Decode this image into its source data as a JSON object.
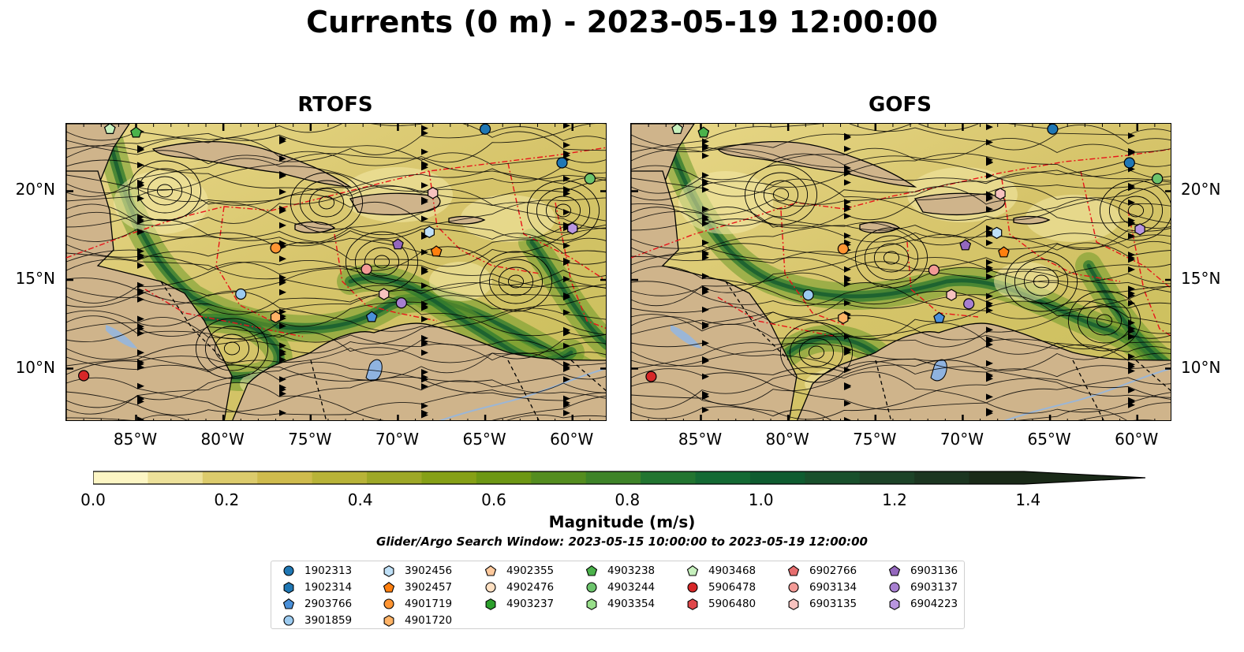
{
  "title": "Currents (0 m) - 2023-05-19 12:00:00",
  "panels": [
    {
      "title": "RTOFS"
    },
    {
      "title": "GOFS"
    }
  ],
  "axes": {
    "lon_ticks": [
      "85°W",
      "80°W",
      "75°W",
      "70°W",
      "65°W",
      "60°W"
    ],
    "lat_ticks": [
      "20°N",
      "15°N",
      "10°N"
    ]
  },
  "colorbar": {
    "label": "Magnitude (m/s)",
    "ticks": [
      "0.0",
      "0.2",
      "0.4",
      "0.6",
      "0.8",
      "1.0",
      "1.2",
      "1.4"
    ],
    "range": [
      0,
      1.5
    ],
    "colors": [
      "#fdf6c4",
      "#ede19a",
      "#dccb6c",
      "#cfbb4d",
      "#b8b338",
      "#9ea827",
      "#86a016",
      "#6d9714",
      "#548d1f",
      "#3e8328",
      "#227530",
      "#146a34",
      "#0f5c30",
      "#19502c",
      "#1d4328",
      "#1c3621",
      "#1a2a18"
    ]
  },
  "search_window": "Glider/Argo Search Window: 2023-05-15 10:00:00 to 2023-05-19 12:00:00",
  "legend": [
    {
      "id": "1902313",
      "shape": "circle",
      "color": "#1f77b4"
    },
    {
      "id": "1902314",
      "shape": "hexagon",
      "color": "#1f77b4"
    },
    {
      "id": "2903766",
      "shape": "pentagon",
      "color": "#4a90d9"
    },
    {
      "id": "3901859",
      "shape": "circle",
      "color": "#9ccbf0"
    },
    {
      "id": "3902456",
      "shape": "hexagon",
      "color": "#bfe0f7"
    },
    {
      "id": "3902457",
      "shape": "pentagon",
      "color": "#ff7f0e"
    },
    {
      "id": "4901719",
      "shape": "circle",
      "color": "#ff9533"
    },
    {
      "id": "4901720",
      "shape": "hexagon",
      "color": "#ffb366"
    },
    {
      "id": "4902355",
      "shape": "pentagon",
      "color": "#ffc99c"
    },
    {
      "id": "4902476",
      "shape": "circle",
      "color": "#ffe0c2"
    },
    {
      "id": "4903237",
      "shape": "hexagon",
      "color": "#2ca02c"
    },
    {
      "id": "4903238",
      "shape": "pentagon",
      "color": "#4bb24b"
    },
    {
      "id": "4903244",
      "shape": "circle",
      "color": "#6cc46c"
    },
    {
      "id": "4903354",
      "shape": "hexagon",
      "color": "#98df8a"
    },
    {
      "id": "4903468",
      "shape": "pentagon",
      "color": "#c6f0bd"
    },
    {
      "id": "5906478",
      "shape": "circle",
      "color": "#d62728"
    },
    {
      "id": "5906480",
      "shape": "hexagon",
      "color": "#e0474a"
    },
    {
      "id": "6902766",
      "shape": "pentagon",
      "color": "#e66d6e"
    },
    {
      "id": "6903134",
      "shape": "circle",
      "color": "#f29a96"
    },
    {
      "id": "6903135",
      "shape": "hexagon",
      "color": "#f7c2bf"
    },
    {
      "id": "6903136",
      "shape": "pentagon",
      "color": "#9467bd"
    },
    {
      "id": "6903137",
      "shape": "circle",
      "color": "#a77fd0"
    },
    {
      "id": "6904223",
      "shape": "hexagon",
      "color": "#b996e0"
    }
  ],
  "markers": [
    {
      "id": "4903468",
      "lon": -86.5,
      "lat": 23.5
    },
    {
      "id": "4903238",
      "lon": -85.0,
      "lat": 23.3
    },
    {
      "id": "1902313",
      "lon": -65.0,
      "lat": 23.5
    },
    {
      "id": "1902313",
      "lon": -60.6,
      "lat": 21.6
    },
    {
      "id": "4903244",
      "lon": -59.0,
      "lat": 20.7
    },
    {
      "id": "6903135",
      "lon": -68.0,
      "lat": 19.9
    },
    {
      "id": "6904223",
      "lon": -60.0,
      "lat": 17.9
    },
    {
      "id": "3902456",
      "lon": -68.2,
      "lat": 17.7
    },
    {
      "id": "6903136",
      "lon": -70.0,
      "lat": 17.0
    },
    {
      "id": "3902457",
      "lon": -67.8,
      "lat": 16.6
    },
    {
      "id": "4901719",
      "lon": -77.0,
      "lat": 16.8
    },
    {
      "id": "6903134",
      "lon": -71.8,
      "lat": 15.6
    },
    {
      "id": "3901859",
      "lon": -79.0,
      "lat": 14.2
    },
    {
      "id": "6903135",
      "lon": -70.8,
      "lat": 14.2
    },
    {
      "id": "6903137",
      "lon": -69.8,
      "lat": 13.7
    },
    {
      "id": "4901720",
      "lon": -77.0,
      "lat": 12.9
    },
    {
      "id": "2903766",
      "lon": -71.5,
      "lat": 12.9
    },
    {
      "id": "5906478",
      "lon": -88.0,
      "lat": 9.6
    }
  ]
}
